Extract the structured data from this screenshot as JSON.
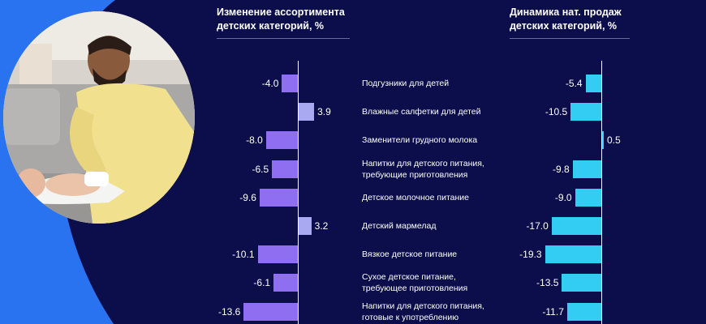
{
  "chart_data": [
    {
      "type": "bar",
      "orientation": "horizontal",
      "title_lines": [
        "Изменение ассортимента",
        "детских категорий, %"
      ],
      "colors": {
        "negative": "#8f6ef2",
        "positive": "#a9a9f2"
      },
      "categories": [
        {
          "lines": [
            "Подгузники для детей"
          ]
        },
        {
          "lines": [
            "Влажные салфетки для детей"
          ]
        },
        {
          "lines": [
            "Заменители грудного молока"
          ]
        },
        {
          "lines": [
            "Напитки для детского питания,",
            "требующие приготовления"
          ]
        },
        {
          "lines": [
            "Детское молочное питание"
          ]
        },
        {
          "lines": [
            "Детский мармелад"
          ]
        },
        {
          "lines": [
            "Вязкое детское питание"
          ]
        },
        {
          "lines": [
            "Сухое детское питание,",
            "требующее приготовления"
          ]
        },
        {
          "lines": [
            "Напитки для детского питания,",
            "готовые к употреблению"
          ]
        }
      ],
      "values": [
        -4.0,
        3.9,
        -8.0,
        -6.5,
        -9.6,
        3.2,
        -10.1,
        -6.1,
        -13.6
      ],
      "labels": [
        "-4.0",
        "3.9",
        "-8.0",
        "-6.5",
        "-9.6",
        "3.2",
        "-10.1",
        "-6.1",
        "-13.6"
      ]
    },
    {
      "type": "bar",
      "orientation": "horizontal",
      "title_lines": [
        "Динамика нат. продаж",
        "детских категорий, %"
      ],
      "colors": {
        "negative": "#33ccf2",
        "positive": "#33ccf2"
      },
      "values": [
        -5.4,
        -10.5,
        0.5,
        -9.8,
        -9.0,
        -17.0,
        -19.3,
        -13.5,
        -11.7
      ],
      "labels": [
        "-5.4",
        "-10.5",
        "0.5",
        "-9.8",
        "-9.0",
        "-17.0",
        "-19.3",
        "-13.5",
        "-11.7"
      ]
    }
  ],
  "theme": {
    "background": "#0b0e4a",
    "accent_blue": "#2a73f0"
  }
}
